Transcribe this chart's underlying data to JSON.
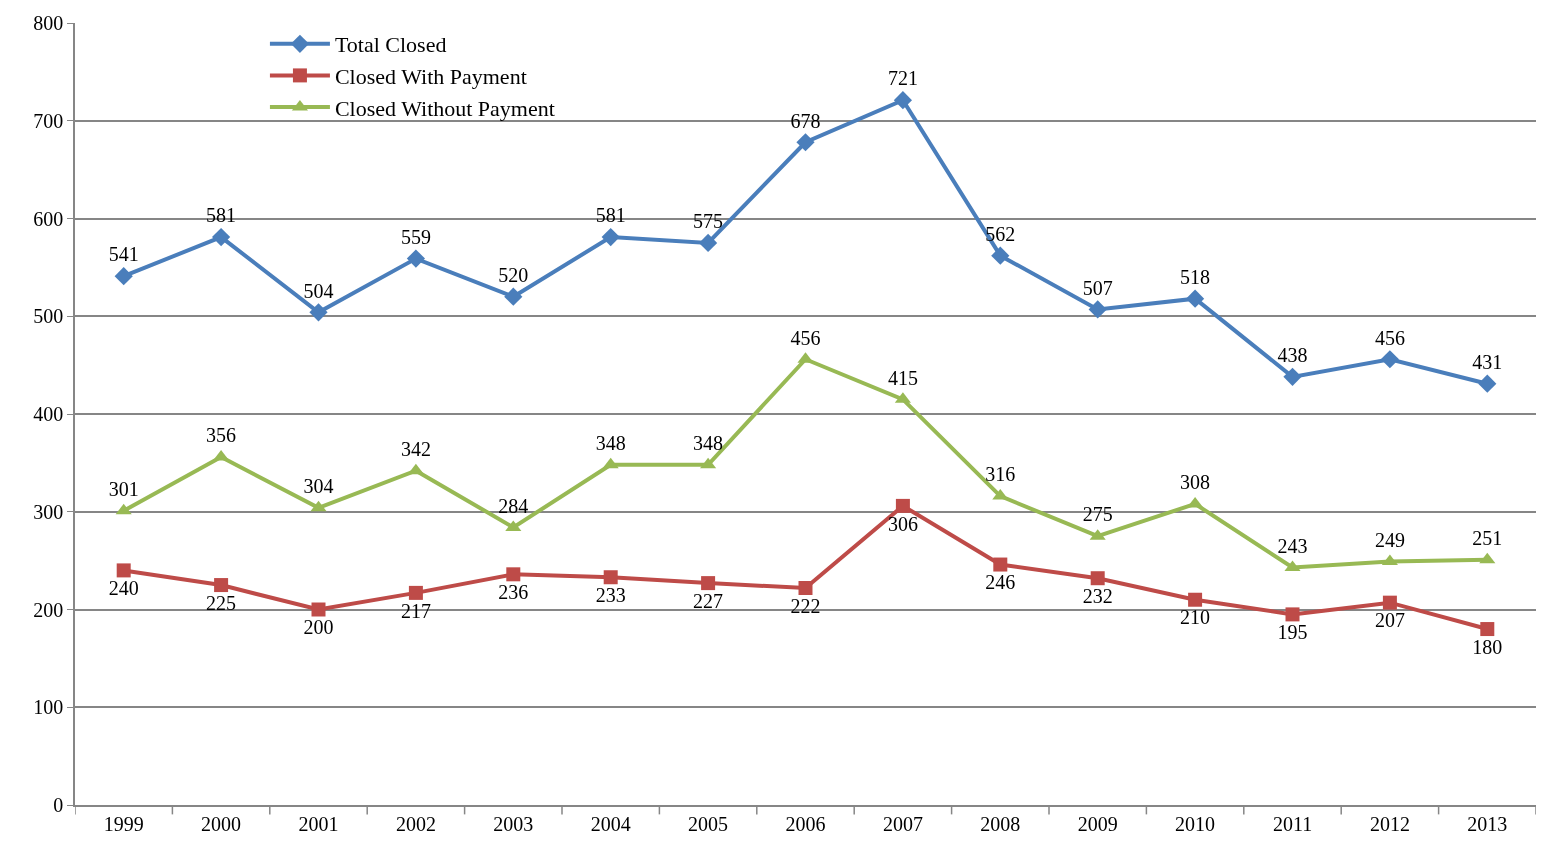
{
  "chart_data": {
    "type": "line",
    "categories": [
      "1999",
      "2000",
      "2001",
      "2002",
      "2003",
      "2004",
      "2005",
      "2006",
      "2007",
      "2008",
      "2009",
      "2010",
      "2011",
      "2012",
      "2013"
    ],
    "series": [
      {
        "name": "Total Closed",
        "color": "#4a7ebb",
        "marker": "diamond",
        "values": [
          541,
          581,
          504,
          559,
          520,
          581,
          575,
          678,
          721,
          562,
          507,
          518,
          438,
          456,
          431
        ]
      },
      {
        "name": "Closed With Payment",
        "color": "#be4b48",
        "marker": "square",
        "values": [
          240,
          225,
          200,
          217,
          236,
          233,
          227,
          222,
          306,
          246,
          232,
          210,
          195,
          207,
          180
        ]
      },
      {
        "name": "Closed Without Payment",
        "color": "#98b954",
        "marker": "triangle",
        "values": [
          301,
          356,
          304,
          342,
          284,
          348,
          348,
          456,
          415,
          316,
          275,
          308,
          243,
          249,
          251
        ]
      }
    ],
    "ylim": [
      0,
      800
    ],
    "yticks": [
      0,
      100,
      200,
      300,
      400,
      500,
      600,
      700,
      800
    ],
    "grid": "y",
    "legend": "top left",
    "data_labels": true,
    "line_style": "solid"
  }
}
